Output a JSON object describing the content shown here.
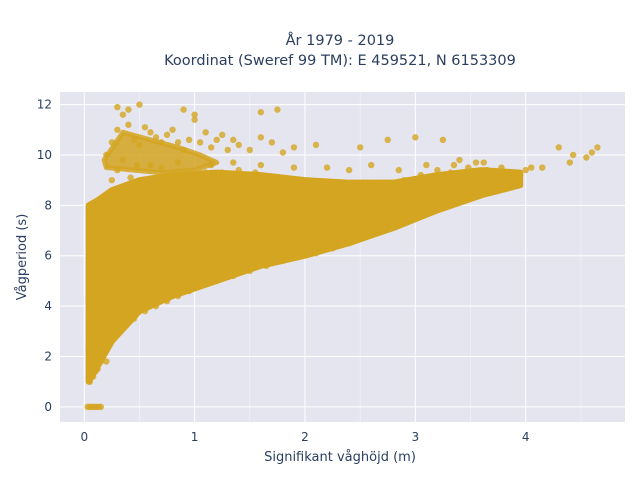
{
  "chart_data": {
    "type": "scatter",
    "title": [
      "År 1979 - 2019",
      "Koordinat (Sweref 99 TM): E 459521, N 6153309"
    ],
    "xlabel": "Signifikant våghöjd (m)",
    "ylabel": "Vågperiod (s)",
    "xlim": [
      -0.22,
      4.9
    ],
    "ylim": [
      -0.6,
      12.5
    ],
    "x_ticks": [
      0,
      1,
      2,
      3,
      4
    ],
    "y_ticks": [
      0,
      2,
      4,
      6,
      8,
      10,
      12
    ],
    "grid": true,
    "legend": "none",
    "colors": {
      "marker": "#d4a520",
      "plot_bg": "#e5e5ef",
      "grid": "#ffffff",
      "text": "#2a3f5f"
    },
    "points": [
      [
        0.03,
        0.0
      ],
      [
        0.05,
        0.0
      ],
      [
        0.07,
        0.0
      ],
      [
        0.09,
        0.0
      ],
      [
        0.11,
        0.0
      ],
      [
        0.13,
        0.0
      ],
      [
        0.15,
        0.0
      ],
      [
        0.05,
        1.0
      ],
      [
        0.08,
        1.2
      ],
      [
        0.1,
        1.4
      ],
      [
        0.06,
        1.7
      ],
      [
        0.12,
        1.5
      ],
      [
        0.15,
        1.8
      ],
      [
        0.2,
        1.8
      ],
      [
        0.04,
        2.2
      ],
      [
        0.06,
        2.8
      ],
      [
        0.05,
        3.5
      ],
      [
        0.04,
        4.2
      ],
      [
        0.05,
        5.0
      ],
      [
        0.06,
        5.8
      ],
      [
        0.05,
        6.5
      ],
      [
        0.06,
        7.2
      ],
      [
        0.07,
        7.9
      ],
      [
        0.1,
        2.5
      ],
      [
        0.12,
        3.2
      ],
      [
        0.1,
        4.0
      ],
      [
        0.12,
        4.8
      ],
      [
        0.1,
        5.6
      ],
      [
        0.12,
        6.4
      ],
      [
        0.1,
        7.2
      ],
      [
        0.12,
        7.8
      ],
      [
        0.18,
        2.4
      ],
      [
        0.2,
        3.0
      ],
      [
        0.18,
        3.8
      ],
      [
        0.2,
        4.6
      ],
      [
        0.18,
        5.4
      ],
      [
        0.2,
        6.2
      ],
      [
        0.18,
        7.0
      ],
      [
        0.2,
        7.8
      ],
      [
        0.25,
        2.8
      ],
      [
        0.3,
        3.4
      ],
      [
        0.28,
        4.2
      ],
      [
        0.3,
        5.0
      ],
      [
        0.28,
        5.8
      ],
      [
        0.3,
        6.6
      ],
      [
        0.28,
        7.4
      ],
      [
        0.3,
        8.0
      ],
      [
        0.35,
        3.3
      ],
      [
        0.4,
        3.8
      ],
      [
        0.38,
        4.6
      ],
      [
        0.4,
        5.4
      ],
      [
        0.38,
        6.2
      ],
      [
        0.4,
        7.0
      ],
      [
        0.38,
        7.8
      ],
      [
        0.4,
        8.2
      ],
      [
        0.45,
        3.5
      ],
      [
        0.5,
        4.0
      ],
      [
        0.48,
        4.8
      ],
      [
        0.5,
        5.6
      ],
      [
        0.48,
        6.4
      ],
      [
        0.5,
        7.2
      ],
      [
        0.48,
        8.0
      ],
      [
        0.5,
        8.4
      ],
      [
        0.55,
        3.8
      ],
      [
        0.6,
        4.3
      ],
      [
        0.58,
        5.0
      ],
      [
        0.6,
        5.8
      ],
      [
        0.58,
        6.6
      ],
      [
        0.6,
        7.4
      ],
      [
        0.58,
        8.2
      ],
      [
        0.6,
        8.6
      ],
      [
        0.65,
        4.0
      ],
      [
        0.7,
        4.5
      ],
      [
        0.68,
        5.2
      ],
      [
        0.7,
        6.0
      ],
      [
        0.68,
        6.8
      ],
      [
        0.7,
        7.6
      ],
      [
        0.68,
        8.4
      ],
      [
        0.7,
        8.8
      ],
      [
        0.75,
        4.2
      ],
      [
        0.8,
        4.7
      ],
      [
        0.78,
        5.4
      ],
      [
        0.8,
        6.2
      ],
      [
        0.78,
        7.0
      ],
      [
        0.8,
        7.8
      ],
      [
        0.78,
        8.5
      ],
      [
        0.8,
        9.0
      ],
      [
        0.85,
        4.4
      ],
      [
        0.9,
        4.9
      ],
      [
        0.88,
        5.6
      ],
      [
        0.9,
        6.4
      ],
      [
        0.88,
        7.2
      ],
      [
        0.9,
        8.0
      ],
      [
        0.88,
        8.7
      ],
      [
        0.9,
        9.1
      ],
      [
        0.95,
        4.6
      ],
      [
        1.0,
        5.1
      ],
      [
        0.98,
        5.8
      ],
      [
        1.0,
        6.6
      ],
      [
        0.98,
        7.4
      ],
      [
        1.0,
        8.2
      ],
      [
        0.98,
        8.8
      ],
      [
        1.0,
        9.2
      ],
      [
        1.05,
        4.8
      ],
      [
        1.1,
        5.3
      ],
      [
        1.08,
        6.0
      ],
      [
        1.1,
        6.8
      ],
      [
        1.08,
        7.6
      ],
      [
        1.1,
        8.3
      ],
      [
        1.08,
        8.9
      ],
      [
        1.1,
        9.3
      ],
      [
        1.2,
        5.0
      ],
      [
        1.25,
        5.5
      ],
      [
        1.22,
        6.2
      ],
      [
        1.25,
        7.0
      ],
      [
        1.22,
        7.8
      ],
      [
        1.25,
        8.5
      ],
      [
        1.22,
        9.0
      ],
      [
        1.25,
        9.3
      ],
      [
        1.35,
        5.2
      ],
      [
        1.4,
        5.7
      ],
      [
        1.38,
        6.4
      ],
      [
        1.4,
        7.2
      ],
      [
        1.38,
        7.9
      ],
      [
        1.4,
        8.6
      ],
      [
        1.38,
        9.1
      ],
      [
        1.4,
        9.4
      ],
      [
        1.5,
        5.4
      ],
      [
        1.55,
        5.9
      ],
      [
        1.52,
        6.6
      ],
      [
        1.55,
        7.3
      ],
      [
        1.52,
        8.0
      ],
      [
        1.55,
        8.6
      ],
      [
        1.52,
        9.1
      ],
      [
        1.55,
        9.3
      ],
      [
        1.65,
        5.6
      ],
      [
        1.7,
        6.1
      ],
      [
        1.68,
        6.8
      ],
      [
        1.7,
        7.4
      ],
      [
        1.68,
        8.1
      ],
      [
        1.7,
        8.6
      ],
      [
        1.68,
        9.0
      ],
      [
        1.8,
        5.8
      ],
      [
        1.85,
        6.3
      ],
      [
        1.82,
        6.9
      ],
      [
        1.85,
        7.5
      ],
      [
        1.82,
        8.1
      ],
      [
        1.85,
        8.6
      ],
      [
        1.82,
        9.0
      ],
      [
        1.95,
        6.0
      ],
      [
        2.0,
        6.4
      ],
      [
        1.98,
        7.0
      ],
      [
        2.0,
        7.6
      ],
      [
        1.98,
        8.1
      ],
      [
        2.0,
        8.6
      ],
      [
        1.98,
        9.0
      ],
      [
        2.1,
        6.1
      ],
      [
        2.15,
        6.6
      ],
      [
        2.12,
        7.1
      ],
      [
        2.15,
        7.7
      ],
      [
        2.12,
        8.2
      ],
      [
        2.15,
        8.6
      ],
      [
        2.25,
        6.3
      ],
      [
        2.3,
        6.7
      ],
      [
        2.28,
        7.2
      ],
      [
        2.3,
        7.8
      ],
      [
        2.28,
        8.3
      ],
      [
        2.3,
        8.7
      ],
      [
        2.4,
        6.5
      ],
      [
        2.45,
        6.9
      ],
      [
        2.42,
        7.4
      ],
      [
        2.45,
        7.9
      ],
      [
        2.42,
        8.3
      ],
      [
        2.45,
        8.7
      ],
      [
        2.55,
        6.8
      ],
      [
        2.6,
        7.1
      ],
      [
        2.58,
        7.5
      ],
      [
        2.6,
        8.0
      ],
      [
        2.58,
        8.4
      ],
      [
        2.6,
        8.8
      ],
      [
        2.7,
        7.0
      ],
      [
        2.75,
        7.3
      ],
      [
        2.72,
        7.7
      ],
      [
        2.75,
        8.1
      ],
      [
        2.72,
        8.5
      ],
      [
        2.75,
        8.9
      ],
      [
        2.85,
        7.3
      ],
      [
        2.9,
        7.6
      ],
      [
        2.88,
        7.9
      ],
      [
        2.9,
        8.2
      ],
      [
        2.88,
        8.6
      ],
      [
        2.9,
        9.0
      ],
      [
        3.0,
        7.6
      ],
      [
        3.05,
        7.9
      ],
      [
        3.02,
        8.2
      ],
      [
        3.05,
        8.5
      ],
      [
        3.02,
        8.8
      ],
      [
        3.05,
        9.2
      ],
      [
        3.15,
        7.9
      ],
      [
        3.2,
        8.2
      ],
      [
        3.18,
        8.5
      ],
      [
        3.2,
        8.8
      ],
      [
        3.18,
        9.1
      ],
      [
        3.2,
        9.4
      ],
      [
        3.3,
        8.1
      ],
      [
        3.35,
        8.4
      ],
      [
        3.32,
        8.7
      ],
      [
        3.35,
        9.0
      ],
      [
        3.32,
        9.3
      ],
      [
        3.35,
        9.6
      ],
      [
        3.45,
        8.3
      ],
      [
        3.5,
        8.6
      ],
      [
        3.48,
        8.9
      ],
      [
        3.5,
        9.2
      ],
      [
        3.48,
        9.5
      ],
      [
        3.6,
        8.5
      ],
      [
        3.65,
        8.8
      ],
      [
        3.62,
        9.1
      ],
      [
        3.65,
        9.4
      ],
      [
        3.62,
        9.7
      ],
      [
        3.75,
        8.7
      ],
      [
        3.8,
        9.0
      ],
      [
        3.82,
        9.2
      ],
      [
        3.78,
        9.5
      ],
      [
        3.9,
        9.0
      ],
      [
        3.95,
        9.2
      ],
      [
        4.0,
        9.4
      ],
      [
        4.05,
        9.5
      ],
      [
        4.15,
        9.5
      ],
      [
        4.4,
        9.7
      ],
      [
        4.43,
        10.0
      ],
      [
        4.55,
        9.9
      ],
      [
        4.6,
        10.1
      ],
      [
        4.65,
        10.3
      ],
      [
        4.3,
        10.3
      ],
      [
        0.2,
        10.0
      ],
      [
        0.25,
        10.5
      ],
      [
        0.3,
        11.0
      ],
      [
        0.35,
        11.6
      ],
      [
        0.4,
        11.2
      ],
      [
        0.45,
        10.6
      ],
      [
        0.5,
        10.4
      ],
      [
        0.55,
        11.1
      ],
      [
        0.6,
        10.9
      ],
      [
        0.65,
        10.7
      ],
      [
        0.7,
        10.5
      ],
      [
        0.75,
        10.8
      ],
      [
        0.8,
        11.0
      ],
      [
        0.85,
        10.5
      ],
      [
        0.9,
        10.2
      ],
      [
        0.95,
        10.6
      ],
      [
        1.0,
        11.4
      ],
      [
        1.05,
        10.5
      ],
      [
        1.1,
        10.9
      ],
      [
        1.15,
        10.3
      ],
      [
        1.2,
        10.6
      ],
      [
        1.25,
        10.8
      ],
      [
        1.3,
        10.2
      ],
      [
        1.35,
        10.6
      ],
      [
        1.4,
        10.4
      ],
      [
        1.5,
        10.2
      ],
      [
        1.6,
        10.7
      ],
      [
        1.7,
        10.5
      ],
      [
        1.8,
        10.1
      ],
      [
        1.9,
        10.3
      ],
      [
        2.1,
        10.4
      ],
      [
        2.5,
        10.3
      ],
      [
        2.75,
        10.6
      ],
      [
        3.0,
        10.7
      ],
      [
        3.25,
        10.6
      ],
      [
        0.3,
        11.9
      ],
      [
        0.4,
        11.8
      ],
      [
        0.5,
        12.0
      ],
      [
        0.9,
        11.8
      ],
      [
        1.0,
        11.6
      ],
      [
        1.6,
        11.7
      ],
      [
        1.75,
        11.8
      ],
      [
        0.6,
        9.6
      ],
      [
        0.7,
        9.5
      ],
      [
        0.85,
        9.7
      ],
      [
        1.15,
        9.6
      ],
      [
        1.35,
        9.7
      ],
      [
        1.6,
        9.6
      ],
      [
        1.9,
        9.5
      ],
      [
        2.2,
        9.5
      ],
      [
        2.4,
        9.4
      ],
      [
        2.6,
        9.6
      ],
      [
        2.85,
        9.4
      ],
      [
        3.1,
        9.6
      ],
      [
        3.4,
        9.8
      ],
      [
        3.55,
        9.7
      ],
      [
        0.22,
        8.5
      ],
      [
        0.25,
        9.0
      ],
      [
        0.3,
        9.4
      ],
      [
        0.35,
        9.8
      ],
      [
        0.42,
        9.1
      ],
      [
        0.48,
        9.6
      ]
    ],
    "dense_regions": [
      {
        "shape": "lower_band",
        "x": [
          0.04,
          0.12,
          0.25,
          0.5,
          0.8,
          1.2,
          1.6,
          2.0,
          2.4,
          2.8,
          3.2,
          3.6,
          3.95
        ],
        "y": [
          1.0,
          1.6,
          2.6,
          3.8,
          4.4,
          5.0,
          5.6,
          6.0,
          6.5,
          7.1,
          7.8,
          8.4,
          8.8
        ]
      },
      {
        "shape": "upper_band",
        "x": [
          0.04,
          0.12,
          0.25,
          0.5,
          0.8,
          1.2,
          1.6,
          2.0,
          2.4,
          2.8,
          3.2,
          3.6,
          3.95
        ],
        "y": [
          8.0,
          8.2,
          8.6,
          9.0,
          9.2,
          9.3,
          9.2,
          9.0,
          8.9,
          8.9,
          9.2,
          9.4,
          9.3
        ]
      },
      {
        "shape": "upper_cluster",
        "x": [
          0.18,
          0.35,
          0.6,
          0.85,
          1.05,
          1.2,
          1.0,
          0.7,
          0.45,
          0.2
        ],
        "y": [
          9.8,
          10.9,
          10.6,
          10.3,
          10.0,
          9.7,
          9.4,
          9.3,
          9.4,
          9.5
        ]
      }
    ]
  }
}
